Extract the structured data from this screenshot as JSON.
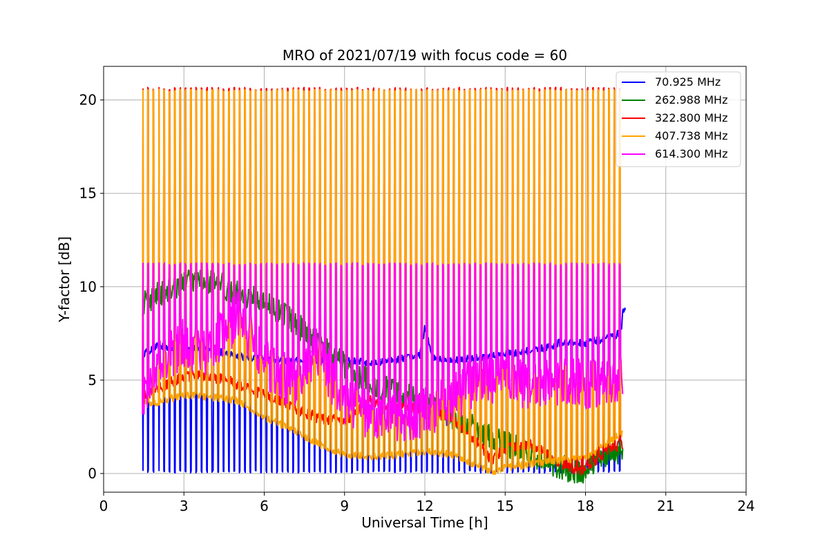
{
  "chart_data": {
    "type": "line",
    "title": "MRO of 2021/07/19 with focus code = 60",
    "xlabel": "Universal Time [h]",
    "ylabel": "Y-factor [dB]",
    "xlim": [
      0,
      24
    ],
    "ylim": [
      -1.0,
      21.8
    ],
    "xticks": [
      "0",
      "3",
      "6",
      "9",
      "12",
      "15",
      "18",
      "21",
      "24"
    ],
    "yticks": [
      "0",
      "5",
      "10",
      "15",
      "20"
    ],
    "grid": true,
    "legend_position": "top-right",
    "pulse_start": 1.47,
    "pulse_period": 0.2,
    "pulse_end": 19.35,
    "series": [
      {
        "name": "  70.925 MHz",
        "color": "#0000ff",
        "baseline": [
          [
            1.45,
            6.4
          ],
          [
            2,
            6.8
          ],
          [
            3,
            6.7
          ],
          [
            4,
            6.6
          ],
          [
            5,
            6.3
          ],
          [
            6,
            6.1
          ],
          [
            7,
            6.0
          ],
          [
            8,
            6.1
          ],
          [
            9,
            6.1
          ],
          [
            10,
            5.9
          ],
          [
            11,
            6.1
          ],
          [
            11.8,
            6.3
          ],
          [
            12,
            7.8
          ],
          [
            12.3,
            6.2
          ],
          [
            13,
            6.1
          ],
          [
            14,
            6.2
          ],
          [
            15,
            6.4
          ],
          [
            16,
            6.6
          ],
          [
            16.8,
            6.8
          ],
          [
            17,
            7.0
          ],
          [
            18,
            7.0
          ],
          [
            19,
            7.3
          ],
          [
            19.35,
            7.6
          ],
          [
            19.4,
            8.8
          ],
          [
            19.5,
            8.9
          ]
        ],
        "pulse_value": 0.1
      },
      {
        "name": "262.988 MHz",
        "color": "#008000",
        "baseline": [
          [
            1.45,
            9.0
          ],
          [
            2,
            9.6
          ],
          [
            3,
            10.2
          ],
          [
            4,
            10.3
          ],
          [
            5,
            9.7
          ],
          [
            6,
            9.2
          ],
          [
            7,
            8.3
          ],
          [
            8,
            6.9
          ],
          [
            9,
            5.8
          ],
          [
            10,
            4.8
          ],
          [
            11,
            4.3
          ],
          [
            12,
            3.8
          ],
          [
            13,
            3.1
          ],
          [
            14,
            2.3
          ],
          [
            15,
            1.6
          ],
          [
            16,
            1.0
          ],
          [
            17,
            0.4
          ],
          [
            17.8,
            0.0
          ],
          [
            18,
            0.3
          ],
          [
            18.5,
            0.8
          ],
          [
            19,
            1.2
          ],
          [
            19.4,
            1.0
          ]
        ],
        "pulse_value": null
      },
      {
        "name": "322.800 MHz",
        "color": "#ff0000",
        "baseline": [
          [
            1.45,
            4.2
          ],
          [
            2,
            4.5
          ],
          [
            3,
            5.2
          ],
          [
            4,
            5.2
          ],
          [
            5,
            4.8
          ],
          [
            6,
            4.2
          ],
          [
            7,
            3.6
          ],
          [
            8,
            3.0
          ],
          [
            9,
            2.8
          ],
          [
            10,
            3.9
          ],
          [
            11,
            3.6
          ],
          [
            12,
            3.4
          ],
          [
            13,
            3.0
          ],
          [
            14,
            1.6
          ],
          [
            14.5,
            0.7
          ],
          [
            15,
            1.4
          ],
          [
            16,
            1.6
          ],
          [
            17,
            0.6
          ],
          [
            17.8,
            0.1
          ],
          [
            18,
            0.3
          ],
          [
            19,
            1.4
          ],
          [
            19.4,
            1.6
          ]
        ],
        "pulse_value": 20.6
      },
      {
        "name": "407.738 MHz",
        "color": "#ffa500",
        "baseline": [
          [
            1.45,
            3.8
          ],
          [
            2,
            3.8
          ],
          [
            3,
            4.2
          ],
          [
            4,
            4.1
          ],
          [
            5,
            3.9
          ],
          [
            6,
            3.0
          ],
          [
            7,
            2.4
          ],
          [
            8,
            1.6
          ],
          [
            9,
            1.0
          ],
          [
            10,
            0.9
          ],
          [
            11,
            1.0
          ],
          [
            12,
            1.2
          ],
          [
            13,
            1.0
          ],
          [
            14,
            0.4
          ],
          [
            14.5,
            0.1
          ],
          [
            15,
            0.3
          ],
          [
            16,
            0.5
          ],
          [
            17,
            0.7
          ],
          [
            18,
            0.8
          ],
          [
            19,
            1.8
          ],
          [
            19.4,
            2.2
          ]
        ],
        "pulse_value": 20.5
      },
      {
        "name": "614.300 MHz",
        "color": "#ff00ff",
        "baseline": [
          [
            1.45,
            4.2
          ],
          [
            2,
            6.0
          ],
          [
            3,
            7.0
          ],
          [
            4,
            6.5
          ],
          [
            5,
            8.5
          ],
          [
            6,
            6.0
          ],
          [
            7,
            4.8
          ],
          [
            8,
            6.5
          ],
          [
            9,
            3.8
          ],
          [
            10,
            3.0
          ],
          [
            11,
            3.0
          ],
          [
            12,
            3.2
          ],
          [
            13,
            4.0
          ],
          [
            14,
            5.2
          ],
          [
            15,
            5.0
          ],
          [
            16,
            4.5
          ],
          [
            17,
            4.8
          ],
          [
            18,
            4.8
          ],
          [
            19,
            4.6
          ],
          [
            19.4,
            5.2
          ]
        ],
        "pulse_value": 11.2
      }
    ]
  }
}
